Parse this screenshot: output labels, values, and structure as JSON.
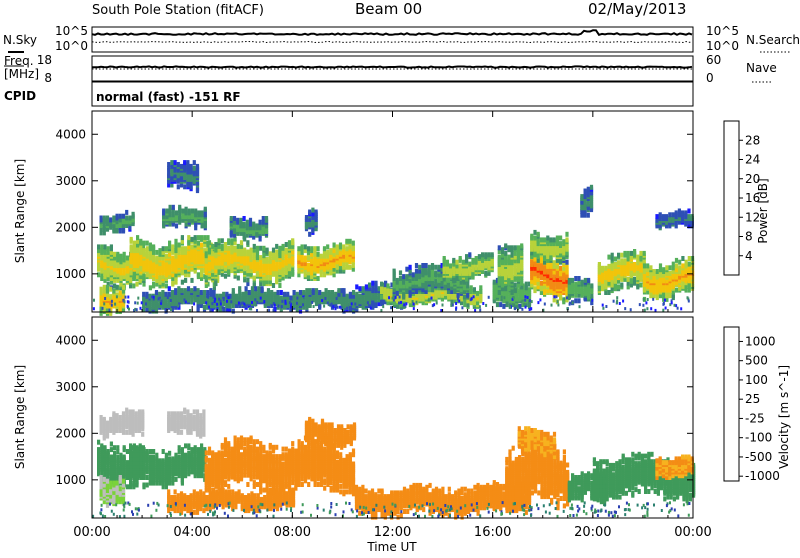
{
  "header": {
    "title": "South Pole Station (fitACF)",
    "beam": "Beam 00",
    "date": "02/May/2013"
  },
  "status_panels": {
    "nsky_label": "N.Sky",
    "nsearch_label": "N.Search",
    "noise_ticks_left": [
      "10^5",
      "10^0"
    ],
    "noise_ticks_right": [
      "10^5",
      "10^0"
    ],
    "freq_label_1": "Freq.",
    "freq_label_2": "[MHz]",
    "freq_ticks": [
      "18",
      "8"
    ],
    "nave_label": "Nave",
    "nave_ticks": [
      "60",
      "0"
    ],
    "cpid_label": "CPID",
    "cpid_text": "normal (fast) -151 RF"
  },
  "colors": {
    "power_scale": [
      "#1a1aff",
      "#2e4fb5",
      "#3f8f6a",
      "#55b05a",
      "#b8d23a",
      "#f2c40a",
      "#f28a14",
      "#ff2a00"
    ],
    "velocity_scale": [
      "#2a3fb0",
      "#2a7f6f",
      "#3f9a5a",
      "#7ad23a",
      "#bdbdbd",
      "#bdbdbd",
      "#f7b21f",
      "#f48c15",
      "#f25a14",
      "#ff1a00"
    ]
  },
  "chart_data": [
    {
      "type": "heatmap",
      "title": "",
      "xlabel": "Time UT",
      "ylabel": "Slant Range [km]",
      "x_ticks": [
        "00:00",
        "04:00",
        "08:00",
        "12:00",
        "16:00",
        "20:00",
        "00:00"
      ],
      "y_ticks": [
        "1000",
        "2000",
        "3000",
        "4000"
      ],
      "ylim": [
        180,
        4500
      ],
      "colorbar": {
        "label": "Power [dB]",
        "ticks": [
          "4",
          "8",
          "12",
          "16",
          "20",
          "24",
          "28"
        ],
        "range": [
          0,
          30
        ]
      },
      "series": [
        {
          "values": [
            [
              0.2,
              2.0,
              1200,
              500,
              20
            ],
            [
              0.3,
              1.2,
              500,
              350,
              23
            ],
            [
              0.3,
              1.6,
              2100,
              220,
              12
            ],
            [
              1.5,
              5.0,
              1250,
              550,
              22
            ],
            [
              2.8,
              4.5,
              2200,
              250,
              12
            ],
            [
              3.0,
              4.2,
              3100,
              350,
              8
            ],
            [
              4.5,
              8.0,
              1250,
              500,
              21
            ],
            [
              5.5,
              7.0,
              2000,
              250,
              12
            ],
            [
              8.2,
              10.5,
              1300,
              400,
              23
            ],
            [
              8.5,
              9.0,
              2150,
              300,
              9
            ],
            [
              2.0,
              10.0,
              450,
              250,
              11
            ],
            [
              10.0,
              12.5,
              500,
              300,
              10
            ],
            [
              11.5,
              15.5,
              550,
              250,
              19
            ],
            [
              12.0,
              15.0,
              850,
              350,
              12
            ],
            [
              14.0,
              16.0,
              1150,
              300,
              18
            ],
            [
              16.0,
              17.5,
              600,
              300,
              15
            ],
            [
              16.2,
              17.2,
              1200,
              600,
              17
            ],
            [
              17.5,
              19.0,
              1000,
              600,
              27
            ],
            [
              17.5,
              19.0,
              1600,
              350,
              18
            ],
            [
              19.0,
              20.0,
              600,
              300,
              14
            ],
            [
              20.2,
              22.0,
              1050,
              450,
              21
            ],
            [
              22.0,
              24.0,
              900,
              450,
              23
            ],
            [
              22.5,
              24.0,
              2150,
              200,
              8
            ],
            [
              19.5,
              20.0,
              2500,
              400,
              9
            ]
          ]
        }
      ]
    },
    {
      "type": "heatmap",
      "title": "",
      "xlabel": "Time UT",
      "ylabel": "Slant Range [km]",
      "x_ticks": [
        "00:00",
        "04:00",
        "08:00",
        "12:00",
        "16:00",
        "20:00",
        "00:00"
      ],
      "y_ticks": [
        "1000",
        "2000",
        "3000",
        "4000"
      ],
      "ylim": [
        180,
        4500
      ],
      "colorbar": {
        "label": "Velocity [m s^-1]",
        "ticks": [
          "1000",
          "500",
          "100",
          "25",
          "-25",
          "-100",
          "-500",
          "-1000"
        ],
        "range": [
          -1200,
          1200
        ]
      },
      "series": [
        {
          "values": [
            [
              0.2,
              2.0,
              1350,
              500,
              150
            ],
            [
              0.3,
              1.2,
              800,
              350,
              25
            ],
            [
              0.3,
              2.0,
              2200,
              300,
              0
            ],
            [
              1.5,
              4.5,
              1300,
              450,
              200
            ],
            [
              3.0,
              4.5,
              2200,
              300,
              0
            ],
            [
              4.5,
              10.5,
              1300,
              600,
              -200
            ],
            [
              8.5,
              10.5,
              2000,
              300,
              -200
            ],
            [
              3.0,
              8.0,
              550,
              250,
              -200
            ],
            [
              10.5,
              16.0,
              550,
              350,
              -200
            ],
            [
              16.0,
              17.5,
              650,
              350,
              -250
            ],
            [
              16.5,
              19.0,
              1100,
              700,
              -200
            ],
            [
              17.0,
              18.5,
              1800,
              300,
              -150
            ],
            [
              19.0,
              20.5,
              800,
              350,
              150
            ],
            [
              20.0,
              24.0,
              1050,
              500,
              200
            ],
            [
              22.5,
              24.0,
              1300,
              250,
              -150
            ]
          ]
        }
      ]
    }
  ]
}
